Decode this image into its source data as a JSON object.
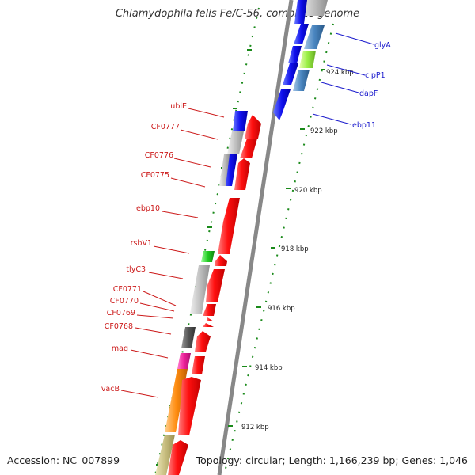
{
  "title": "Chlamydophila felis Fe/C-56, complete genome",
  "footer": {
    "accession": "Accession: NC_007899",
    "summary": "Topology: circular; Length: 1,166,239 bp; Genes: 1,046"
  },
  "colors": {
    "backbone": "#888888",
    "tick": "#1a8a1a",
    "forward_label": "#1a1acc",
    "reverse_label": "#cc1a1a"
  },
  "forward_labels": [
    "glyA",
    "clpP1",
    "dapF",
    "ebp11"
  ],
  "reverse_labels": [
    "ubiE",
    "CF0777",
    "CF0776",
    "CF0775",
    "ebp10",
    "rsbV1",
    "tlyC3",
    "CF0771",
    "CF0770",
    "CF0769",
    "CF0768",
    "mag",
    "vacB"
  ],
  "scale_labels": [
    "924 kbp",
    "922 kbp",
    "920 kbp",
    "918 kbp",
    "916 kbp",
    "914 kbp",
    "912 kbp"
  ]
}
